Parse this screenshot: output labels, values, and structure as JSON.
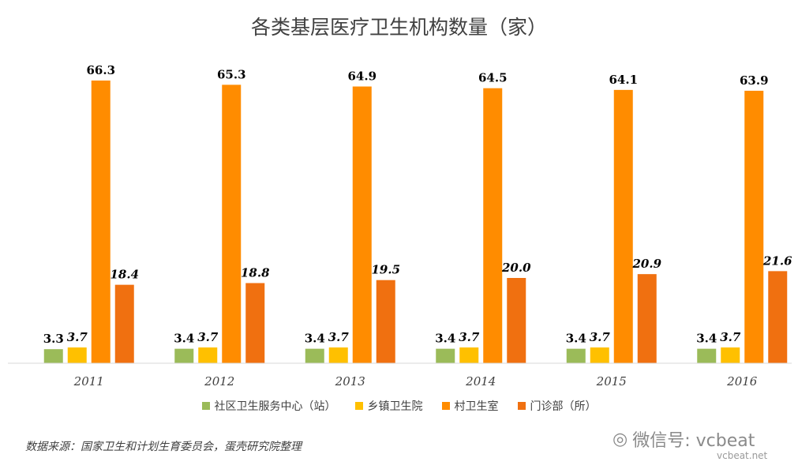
{
  "chart_data": {
    "type": "bar",
    "title": "各类基层医疗卫生机构数量（家）",
    "categories": [
      "2011",
      "2012",
      "2013",
      "2014",
      "2015",
      "2016"
    ],
    "series": [
      {
        "name": "社区卫生服务中心（站）",
        "color": "#9bbb59",
        "values": [
          3.3,
          3.4,
          3.4,
          3.4,
          3.4,
          3.4
        ]
      },
      {
        "name": "乡镇卫生院",
        "color": "#ffc000",
        "values": [
          3.7,
          3.7,
          3.7,
          3.7,
          3.7,
          3.7
        ]
      },
      {
        "name": "村卫生室",
        "color": "#ff8c00",
        "values": [
          66.3,
          65.3,
          64.9,
          64.5,
          64.1,
          63.9
        ]
      },
      {
        "name": "门诊部（所）",
        "color": "#f07010",
        "values": [
          18.4,
          18.8,
          19.5,
          20.0,
          20.9,
          21.6
        ]
      }
    ],
    "data_labels": [
      [
        "3.3",
        "3.7",
        "66.3",
        "18.4"
      ],
      [
        "3.4",
        "3.7",
        "65.3",
        "18.8"
      ],
      [
        "3.4",
        "3.7",
        "64.9",
        "19.5"
      ],
      [
        "3.4",
        "3.7",
        "64.5",
        "20.0"
      ],
      [
        "3.4",
        "3.7",
        "64.1",
        "20.9"
      ],
      [
        "3.4",
        "3.7",
        "63.9",
        "21.6"
      ]
    ],
    "ylim": [
      0,
      70
    ],
    "grid": false,
    "legend_position": "bottom"
  },
  "source_note": "数据来源：国家卫生和计划生育委员会，蛋壳研究院整理",
  "watermark": {
    "text": "微信号: vcbeat",
    "site": "vcbeat.net"
  }
}
